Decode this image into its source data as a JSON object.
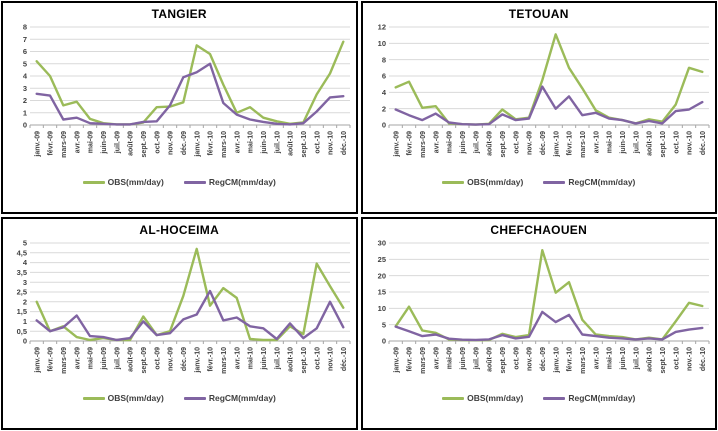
{
  "figure": {
    "kind": "multi-panel-line-charts",
    "panel_count": 4,
    "series_unit": "mm/day"
  },
  "colors": {
    "obs_line": "#9BBB59",
    "regcm_line": "#8064A2",
    "gridline": "#D9D9D9",
    "axis_line": "#A6A6A6",
    "tick_text": "#404040",
    "title_text": "#000000",
    "panel_border": "#000000"
  },
  "chart_data": [
    {
      "type": "line",
      "title": "TANGIER",
      "ylim": [
        0,
        8
      ],
      "ytick_step": 1,
      "grid": true,
      "legend_position": "bottom",
      "categories": [
        "janv.-09",
        "févr.-09",
        "mars-09",
        "avr.-09",
        "mai-09",
        "juin-09",
        "juil.-09",
        "août-09",
        "sept.-09",
        "oct.-09",
        "nov.-09",
        "déc.-09",
        "janv.-10",
        "févr.-10",
        "mars-10",
        "avr.-10",
        "mai-10",
        "juin-10",
        "juil.-10",
        "août-10",
        "sept.-10",
        "oct.-10",
        "nov.-10",
        "déc.-10"
      ],
      "series": [
        {
          "name": "OBS(mm/day)",
          "color": "#9BBB59",
          "values": [
            5.2,
            4.0,
            1.6,
            1.9,
            0.5,
            0.15,
            0.05,
            0.05,
            0.2,
            1.45,
            1.5,
            1.85,
            6.5,
            5.8,
            3.3,
            1.0,
            1.45,
            0.6,
            0.3,
            0.1,
            0.2,
            2.5,
            4.2,
            6.8
          ]
        },
        {
          "name": "RegCM(mm/day)",
          "color": "#8064A2",
          "values": [
            2.55,
            2.4,
            0.45,
            0.6,
            0.15,
            0.1,
            0.05,
            0.05,
            0.25,
            0.3,
            1.6,
            3.9,
            4.3,
            5.0,
            1.8,
            0.85,
            0.45,
            0.25,
            0.1,
            0.05,
            0.15,
            1.1,
            2.25,
            2.35
          ]
        }
      ]
    },
    {
      "type": "line",
      "title": "TETOUAN",
      "ylim": [
        0,
        12
      ],
      "ytick_step": 2,
      "grid": true,
      "legend_position": "bottom",
      "categories": [
        "janv.-09",
        "févr.-09",
        "mars-09",
        "avr.-09",
        "mai-09",
        "juin-09",
        "juil.-09",
        "août-09",
        "sept.-09",
        "oct.-09",
        "nov.-09",
        "déc.-09",
        "janv.-10",
        "févr.-10",
        "mars-10",
        "avr.-10",
        "mai-10",
        "juin-10",
        "juil.-10",
        "août-10",
        "sept.-10",
        "oct.-10",
        "nov.-10",
        "déc.-10"
      ],
      "series": [
        {
          "name": "OBS(mm/day)",
          "color": "#9BBB59",
          "values": [
            4.6,
            5.3,
            2.1,
            2.3,
            0.2,
            0.1,
            0.05,
            0.15,
            1.9,
            0.7,
            0.9,
            5.5,
            11.1,
            7.0,
            4.5,
            1.8,
            0.9,
            0.6,
            0.2,
            0.7,
            0.4,
            2.5,
            7.0,
            6.5
          ]
        },
        {
          "name": "RegCM(mm/day)",
          "color": "#8064A2",
          "values": [
            1.9,
            1.2,
            0.6,
            1.4,
            0.3,
            0.1,
            0.05,
            0.1,
            1.3,
            0.6,
            0.8,
            4.7,
            2.0,
            3.5,
            1.2,
            1.5,
            0.8,
            0.6,
            0.2,
            0.5,
            0.2,
            1.7,
            1.9,
            2.8
          ]
        }
      ]
    },
    {
      "type": "line",
      "title": "AL-HOCEIMA",
      "ylim": [
        0,
        5
      ],
      "ytick_step": 0.5,
      "decimal_comma": true,
      "grid": true,
      "legend_position": "bottom",
      "categories": [
        "janv.-09",
        "févr.-09",
        "mars-09",
        "avr.-09",
        "mai-09",
        "juin-09",
        "juil.-09",
        "août-09",
        "sept.-09",
        "oct.-09",
        "nov.-09",
        "déc.-09",
        "janv.-10",
        "févr.-10",
        "mars-10",
        "avr.-10",
        "mai-10",
        "juin-10",
        "juil.-10",
        "août-10",
        "sept.-10",
        "oct.-10",
        "nov.-10",
        "déc.-10"
      ],
      "series": [
        {
          "name": "OBS(mm/day)",
          "color": "#9BBB59",
          "values": [
            2.0,
            0.5,
            0.75,
            0.2,
            0.05,
            0.15,
            0.05,
            0.05,
            1.25,
            0.3,
            0.5,
            2.3,
            4.7,
            1.8,
            2.7,
            2.2,
            0.1,
            0.05,
            0.05,
            0.75,
            0.35,
            3.95,
            2.8,
            1.7
          ]
        },
        {
          "name": "RegCM(mm/day)",
          "color": "#8064A2",
          "values": [
            1.05,
            0.5,
            0.7,
            1.3,
            0.25,
            0.2,
            0.05,
            0.15,
            1.0,
            0.3,
            0.4,
            1.1,
            1.35,
            2.55,
            1.05,
            1.2,
            0.75,
            0.65,
            0.1,
            0.9,
            0.15,
            0.65,
            2.0,
            0.7
          ]
        }
      ]
    },
    {
      "type": "line",
      "title": "CHEFCHAOUEN",
      "ylim": [
        0,
        30
      ],
      "ytick_step": 5,
      "grid": true,
      "legend_position": "bottom",
      "categories": [
        "janv.-09",
        "févr.-09",
        "mars-09",
        "avr.-09",
        "mai-09",
        "juin-09",
        "juil.-09",
        "août-09",
        "sept.-09",
        "oct.-09",
        "nov.-09",
        "déc.-09",
        "janv.-10",
        "févr.-10",
        "mars-10",
        "avr.-10",
        "mai-10",
        "juin-10",
        "juil.-10",
        "août-10",
        "sept.-10",
        "oct.-10",
        "nov.-10",
        "déc.-10"
      ],
      "series": [
        {
          "name": "OBS(mm/day)",
          "color": "#9BBB59",
          "values": [
            4.5,
            10.5,
            3.2,
            2.5,
            0.5,
            0.3,
            0.2,
            0.3,
            2.2,
            1.2,
            1.8,
            27.8,
            14.8,
            18.0,
            6.5,
            2.0,
            1.5,
            1.2,
            0.5,
            1.0,
            0.5,
            6.0,
            11.7,
            10.7
          ]
        },
        {
          "name": "RegCM(mm/day)",
          "color": "#8064A2",
          "values": [
            4.4,
            3.0,
            1.5,
            2.0,
            0.7,
            0.4,
            0.3,
            0.5,
            1.8,
            0.8,
            1.3,
            8.9,
            5.8,
            8.0,
            2.0,
            1.5,
            1.0,
            0.8,
            0.5,
            0.8,
            0.5,
            2.8,
            3.5,
            4.0
          ]
        }
      ]
    }
  ]
}
